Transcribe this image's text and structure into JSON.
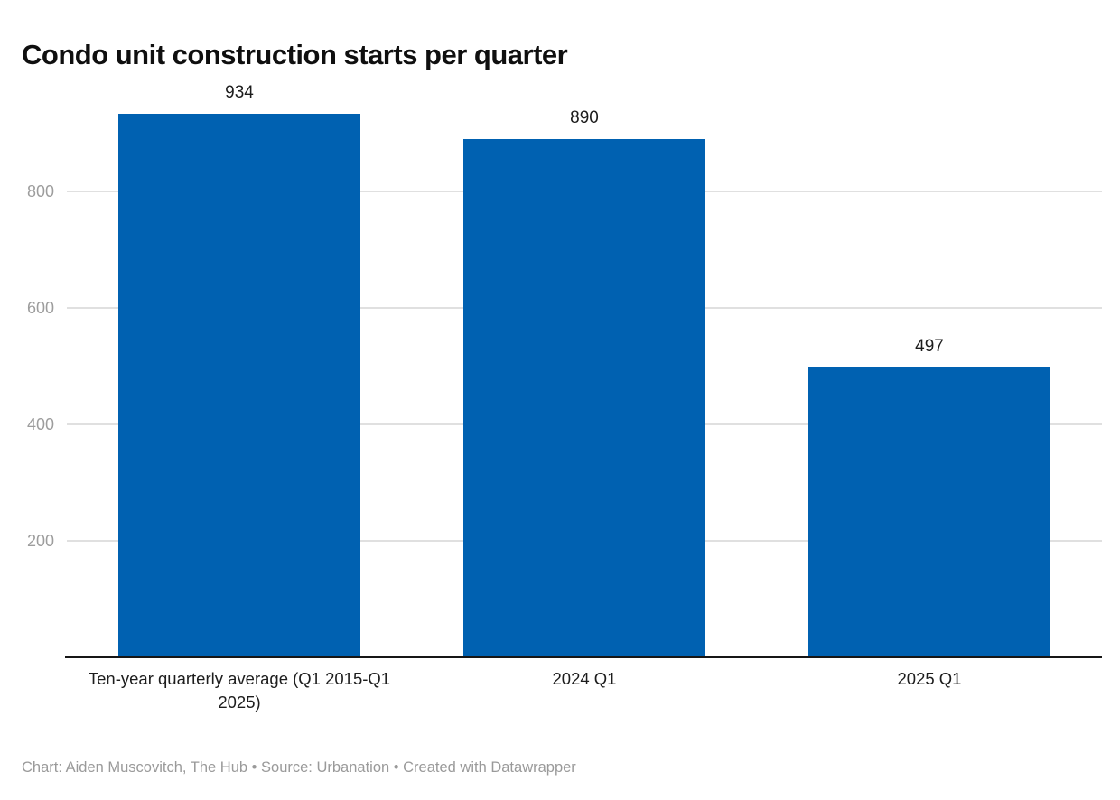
{
  "title": "Condo unit construction starts per quarter",
  "footer_text": "Chart: Aiden Muscovitch, The Hub • Source: Urbanation • Created with Datawrapper",
  "chart_data": {
    "type": "bar",
    "title": "Condo unit construction starts per quarter",
    "categories": [
      "Ten-year quarterly average (Q1 2015-Q1 2025)",
      "2024 Q1",
      "2025 Q1"
    ],
    "values": [
      934,
      890,
      497
    ],
    "value_labels": [
      "934",
      "890",
      "497"
    ],
    "xlabel": "",
    "ylabel": "",
    "ylim": [
      0,
      950
    ],
    "yticks": [
      200,
      400,
      600,
      800
    ],
    "grid": true,
    "legend": "none",
    "attribution": "Chart: Aiden Muscovitch, The Hub • Source: Urbanation • Created with Datawrapper"
  },
  "colors": {
    "bar": "#0061b1",
    "gridline": "#e0e0e0",
    "tick_label": "#9d9d9d",
    "value_label": "#1d1d1d",
    "x_label": "#1d1d1d",
    "axis_line": "#161616",
    "title": "#0f0f0f",
    "footer": "#9a9a9a",
    "background": "#ffffff"
  }
}
